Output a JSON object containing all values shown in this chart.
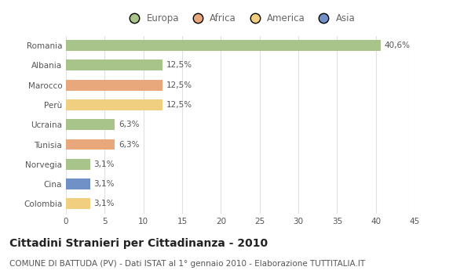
{
  "countries": [
    "Romania",
    "Albania",
    "Marocco",
    "Perù",
    "Ucraina",
    "Tunisia",
    "Norvegia",
    "Cina",
    "Colombia"
  ],
  "values": [
    40.6,
    12.5,
    12.5,
    12.5,
    6.3,
    6.3,
    3.1,
    3.1,
    3.1
  ],
  "labels": [
    "40,6%",
    "12,5%",
    "12,5%",
    "12,5%",
    "6,3%",
    "6,3%",
    "3,1%",
    "3,1%",
    "3,1%"
  ],
  "continents": [
    "Europa",
    "Europa",
    "Africa",
    "America",
    "Europa",
    "Africa",
    "Europa",
    "Asia",
    "America"
  ],
  "colors": {
    "Europa": "#a8c48a",
    "Africa": "#e8a87c",
    "America": "#f0d080",
    "Asia": "#7090c8"
  },
  "legend_labels": [
    "Europa",
    "Africa",
    "America",
    "Asia"
  ],
  "xlim": [
    0,
    45
  ],
  "xticks": [
    0,
    5,
    10,
    15,
    20,
    25,
    30,
    35,
    40,
    45
  ],
  "title": "Cittadini Stranieri per Cittadinanza - 2010",
  "subtitle": "COMUNE DI BATTUDA (PV) - Dati ISTAT al 1° gennaio 2010 - Elaborazione TUTTITALIA.IT",
  "bg_color": "#ffffff",
  "grid_color": "#e0e0e0",
  "bar_label_fontsize": 7.5,
  "tick_fontsize": 7.5,
  "title_fontsize": 10,
  "subtitle_fontsize": 7.5,
  "legend_fontsize": 8.5
}
